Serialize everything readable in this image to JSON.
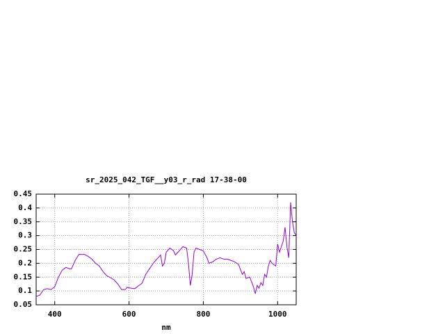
{
  "chart_data": {
    "type": "line",
    "title": "sr_2025_042_TGF__y03_r_rad 17-38-00",
    "x_label": "nm",
    "x": [
      350,
      360,
      370,
      380,
      390,
      400,
      410,
      420,
      430,
      440,
      445,
      455,
      465,
      480,
      490,
      500,
      510,
      520,
      530,
      540,
      550,
      560,
      570,
      580,
      590,
      595,
      605,
      615,
      625,
      635,
      645,
      655,
      665,
      675,
      685,
      690,
      695,
      700,
      710,
      720,
      725,
      735,
      745,
      755,
      760,
      765,
      770,
      775,
      780,
      790,
      800,
      810,
      815,
      825,
      835,
      845,
      855,
      865,
      875,
      885,
      895,
      905,
      910,
      915,
      925,
      935,
      940,
      945,
      950,
      955,
      960,
      965,
      970,
      975,
      980,
      985,
      995,
      1000,
      1005,
      1010,
      1015,
      1020,
      1025,
      1030,
      1035,
      1040,
      1045,
      1050
    ],
    "series": [
      {
        "color": "#9400d3",
        "values": [
          0.08,
          0.085,
          0.105,
          0.108,
          0.105,
          0.115,
          0.15,
          0.175,
          0.185,
          0.18,
          0.18,
          0.21,
          0.232,
          0.232,
          0.225,
          0.215,
          0.2,
          0.19,
          0.17,
          0.155,
          0.148,
          0.14,
          0.125,
          0.105,
          0.105,
          0.113,
          0.11,
          0.108,
          0.118,
          0.128,
          0.16,
          0.18,
          0.2,
          0.215,
          0.23,
          0.19,
          0.2,
          0.24,
          0.255,
          0.245,
          0.23,
          0.245,
          0.26,
          0.255,
          0.2,
          0.12,
          0.16,
          0.24,
          0.255,
          0.25,
          0.245,
          0.22,
          0.2,
          0.205,
          0.215,
          0.22,
          0.215,
          0.215,
          0.21,
          0.205,
          0.195,
          0.16,
          0.17,
          0.145,
          0.15,
          0.115,
          0.09,
          0.12,
          0.11,
          0.13,
          0.12,
          0.16,
          0.15,
          0.19,
          0.21,
          0.2,
          0.19,
          0.27,
          0.24,
          0.26,
          0.28,
          0.33,
          0.26,
          0.22,
          0.42,
          0.35,
          0.31,
          0.3
        ]
      }
    ],
    "xlim": [
      350,
      1050
    ],
    "xticks": [
      400,
      600,
      800,
      1000
    ],
    "ylim": [
      0.05,
      0.45
    ],
    "yticks": [
      0.05,
      0.1,
      0.15,
      0.2,
      0.25,
      0.3,
      0.35,
      0.4,
      0.45
    ],
    "grid": true
  }
}
